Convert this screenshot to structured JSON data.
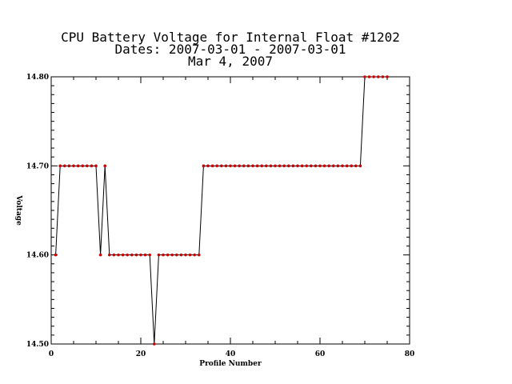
{
  "chart_data": {
    "type": "line",
    "title_lines": [
      "CPU Battery Voltage for Internal Float #1202",
      "Dates:  2007-03-01 -  2007-03-01",
      "Mar  4, 2007"
    ],
    "xlabel": "Profile Number",
    "ylabel": "Voltage",
    "xlim": [
      0,
      80
    ],
    "ylim": [
      14.5,
      14.8
    ],
    "x_ticks": [
      0,
      20,
      40,
      60,
      80
    ],
    "x_tick_labels": [
      "0",
      "20",
      "40",
      "60",
      "80"
    ],
    "y_ticks": [
      14.5,
      14.6,
      14.7,
      14.8
    ],
    "y_tick_labels": [
      "14.50",
      "14.60",
      "14.70",
      "14.80"
    ],
    "grid": false,
    "line_color": "#000000",
    "marker_color": "#cc0000",
    "series": [
      {
        "x": [
          1,
          2,
          3,
          4,
          5,
          6,
          7,
          8,
          9,
          10,
          11,
          12,
          13,
          14,
          15,
          16,
          17,
          18,
          19,
          20,
          21,
          22,
          23,
          24,
          25,
          26,
          27,
          28,
          29,
          30,
          31,
          32,
          33,
          34,
          35,
          36,
          37,
          38,
          39,
          40,
          41,
          42,
          43,
          44,
          45,
          46,
          47,
          48,
          49,
          50,
          51,
          52,
          53,
          54,
          55,
          56,
          57,
          58,
          59,
          60,
          61,
          62,
          63,
          64,
          65,
          66,
          67,
          68,
          69,
          70,
          71,
          72,
          73,
          74,
          75
        ],
        "y": [
          14.6,
          14.7,
          14.7,
          14.7,
          14.7,
          14.7,
          14.7,
          14.7,
          14.7,
          14.7,
          14.6,
          14.7,
          14.6,
          14.6,
          14.6,
          14.6,
          14.6,
          14.6,
          14.6,
          14.6,
          14.6,
          14.6,
          14.5,
          14.6,
          14.6,
          14.6,
          14.6,
          14.6,
          14.6,
          14.6,
          14.6,
          14.6,
          14.6,
          14.7,
          14.7,
          14.7,
          14.7,
          14.7,
          14.7,
          14.7,
          14.7,
          14.7,
          14.7,
          14.7,
          14.7,
          14.7,
          14.7,
          14.7,
          14.7,
          14.7,
          14.7,
          14.7,
          14.7,
          14.7,
          14.7,
          14.7,
          14.7,
          14.7,
          14.7,
          14.7,
          14.7,
          14.7,
          14.7,
          14.7,
          14.7,
          14.7,
          14.7,
          14.7,
          14.7,
          14.8,
          14.8,
          14.8,
          14.8,
          14.8,
          14.8
        ]
      }
    ]
  }
}
